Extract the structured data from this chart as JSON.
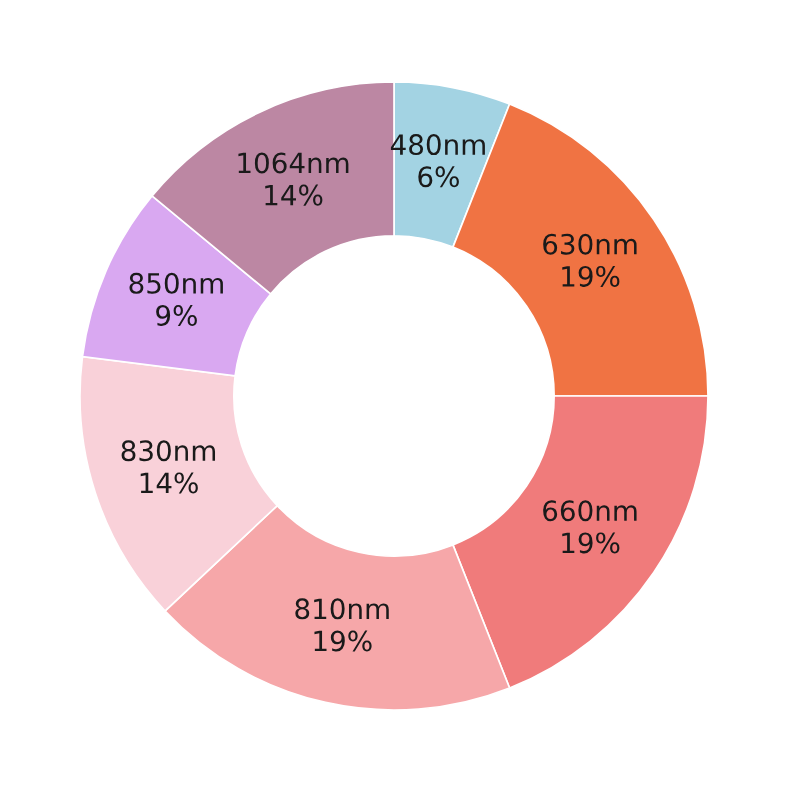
{
  "chart_data": {
    "type": "donut",
    "categories": [
      "480nm",
      "630nm",
      "660nm",
      "810nm",
      "830nm",
      "850nm",
      "1064nm"
    ],
    "values": [
      6,
      19,
      19,
      19,
      14,
      9,
      14
    ],
    "value_labels": [
      "6%",
      "19%",
      "19%",
      "19%",
      "14%",
      "9%",
      "14%"
    ],
    "colors": [
      "#a3d3e3",
      "#f07343",
      "#f07b7b",
      "#f6a7a9",
      "#f9d1d9",
      "#d9a8f1",
      "#bc87a3"
    ]
  }
}
